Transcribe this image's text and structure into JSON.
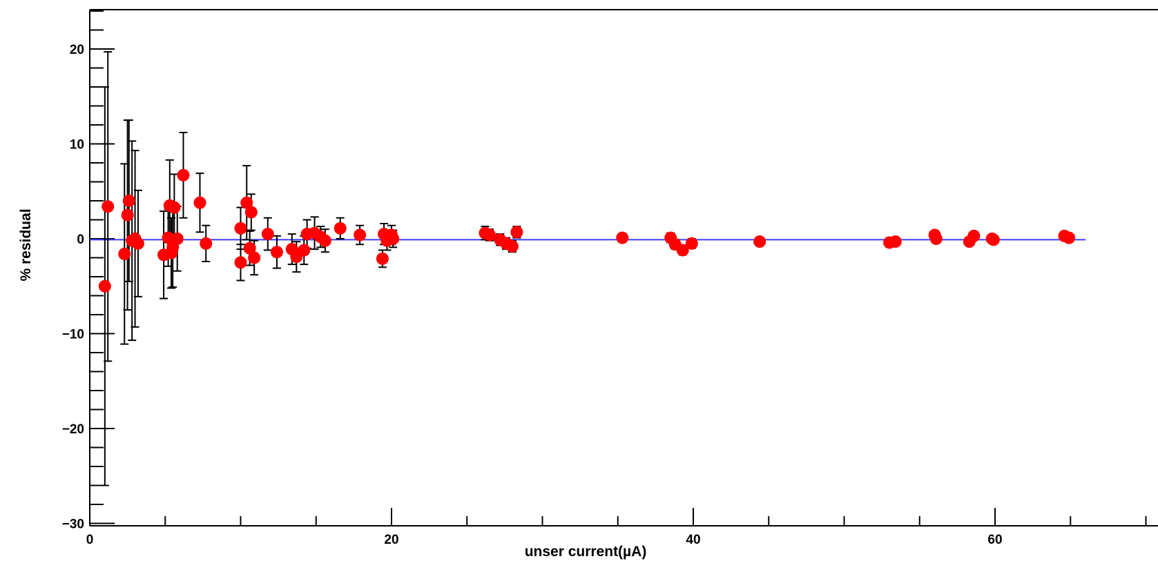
{
  "chart_data": {
    "type": "scatter",
    "xlabel": "unser current(µA)",
    "ylabel": "% residual",
    "xlim": [
      0,
      70
    ],
    "ylim": [
      -30,
      24
    ],
    "x_ticks": [
      0,
      20,
      40,
      60
    ],
    "y_ticks": [
      -30,
      -20,
      -10,
      0,
      10,
      20
    ],
    "x_tick_labels": [
      "0",
      "20",
      "40",
      "60"
    ],
    "y_tick_labels": [
      "−30",
      "−20",
      "−10",
      "0",
      "10",
      "20"
    ],
    "grid": false,
    "colors": {
      "points": "#ff0000",
      "error_bars": "#000000",
      "fit_line": "#3b3bff",
      "frame": "#000000"
    },
    "fit_line": {
      "y": -0.1,
      "x_start": 0,
      "x_end": 66
    },
    "points": [
      {
        "x": 1.0,
        "y": -5.0,
        "err": 21.0
      },
      {
        "x": 1.2,
        "y": 3.4,
        "err": 16.3
      },
      {
        "x": 2.3,
        "y": -1.6,
        "err": 9.5
      },
      {
        "x": 2.5,
        "y": 2.5,
        "err": 10.0
      },
      {
        "x": 2.6,
        "y": 4.0,
        "err": 8.5
      },
      {
        "x": 2.8,
        "y": -0.2,
        "err": 10.5
      },
      {
        "x": 3.0,
        "y": 0.0,
        "err": 9.3
      },
      {
        "x": 3.2,
        "y": -0.5,
        "err": 5.6
      },
      {
        "x": 4.9,
        "y": -1.7,
        "err": 4.6
      },
      {
        "x": 5.2,
        "y": 0.1,
        "err": 3.0
      },
      {
        "x": 5.3,
        "y": 3.5,
        "err": 4.8
      },
      {
        "x": 5.4,
        "y": -1.5,
        "err": 3.7
      },
      {
        "x": 5.5,
        "y": -0.9,
        "err": 4.2
      },
      {
        "x": 5.6,
        "y": 3.3,
        "err": 3.5
      },
      {
        "x": 5.8,
        "y": 0.0,
        "err": 3.4
      },
      {
        "x": 6.2,
        "y": 6.7,
        "err": 4.5
      },
      {
        "x": 7.3,
        "y": 3.8,
        "err": 3.1
      },
      {
        "x": 7.7,
        "y": -0.5,
        "err": 1.9
      },
      {
        "x": 10.0,
        "y": 1.1,
        "err": 2.2
      },
      {
        "x": 10.0,
        "y": -2.5,
        "err": 1.9
      },
      {
        "x": 10.4,
        "y": 3.8,
        "err": 3.9
      },
      {
        "x": 10.6,
        "y": -1.0,
        "err": 1.8
      },
      {
        "x": 10.7,
        "y": 2.8,
        "err": 1.9
      },
      {
        "x": 10.9,
        "y": -2.0,
        "err": 1.8
      },
      {
        "x": 11.8,
        "y": 0.5,
        "err": 1.7
      },
      {
        "x": 12.4,
        "y": -1.4,
        "err": 1.7
      },
      {
        "x": 13.4,
        "y": -1.1,
        "err": 1.6
      },
      {
        "x": 13.7,
        "y": -1.9,
        "err": 1.6
      },
      {
        "x": 14.2,
        "y": -1.2,
        "err": 1.5
      },
      {
        "x": 14.4,
        "y": 0.5,
        "err": 1.5
      },
      {
        "x": 14.9,
        "y": 0.6,
        "err": 1.7
      },
      {
        "x": 15.3,
        "y": 0.2,
        "err": 1.1
      },
      {
        "x": 15.6,
        "y": -0.2,
        "err": 1.2
      },
      {
        "x": 16.6,
        "y": 1.1,
        "err": 1.1
      },
      {
        "x": 17.9,
        "y": 0.4,
        "err": 1.0
      },
      {
        "x": 19.4,
        "y": -2.1,
        "err": 0.9
      },
      {
        "x": 19.5,
        "y": 0.5,
        "err": 1.1
      },
      {
        "x": 19.7,
        "y": -0.2,
        "err": 1.0
      },
      {
        "x": 20.0,
        "y": 0.4,
        "err": 1.0
      },
      {
        "x": 20.1,
        "y": 0.0,
        "err": 0.9
      },
      {
        "x": 26.2,
        "y": 0.6,
        "err": 0.7
      },
      {
        "x": 26.5,
        "y": 0.4,
        "err": 0.6
      },
      {
        "x": 27.2,
        "y": -0.1,
        "err": 0.6
      },
      {
        "x": 27.6,
        "y": -0.5,
        "err": 0.6
      },
      {
        "x": 28.0,
        "y": -0.8,
        "err": 0.6
      },
      {
        "x": 28.3,
        "y": 0.7,
        "err": 0.6
      },
      {
        "x": 35.3,
        "y": 0.1,
        "err": 0.4
      },
      {
        "x": 38.5,
        "y": 0.1,
        "err": 0.5
      },
      {
        "x": 38.8,
        "y": -0.6,
        "err": 0.5
      },
      {
        "x": 39.3,
        "y": -1.2,
        "err": 0.5
      },
      {
        "x": 39.9,
        "y": -0.5,
        "err": 0.5
      },
      {
        "x": 44.4,
        "y": -0.3,
        "err": 0.4
      },
      {
        "x": 53.0,
        "y": -0.4,
        "err": 0.3
      },
      {
        "x": 53.4,
        "y": -0.3,
        "err": 0.3
      },
      {
        "x": 56.0,
        "y": 0.4,
        "err": 0.4
      },
      {
        "x": 56.1,
        "y": 0.0,
        "err": 0.3
      },
      {
        "x": 58.3,
        "y": -0.3,
        "err": 0.3
      },
      {
        "x": 58.6,
        "y": 0.3,
        "err": 0.3
      },
      {
        "x": 59.8,
        "y": 0.0,
        "err": 0.3
      },
      {
        "x": 59.9,
        "y": -0.1,
        "err": 0.3
      },
      {
        "x": 64.6,
        "y": 0.3,
        "err": 0.3
      },
      {
        "x": 64.9,
        "y": 0.1,
        "err": 0.3
      }
    ]
  }
}
